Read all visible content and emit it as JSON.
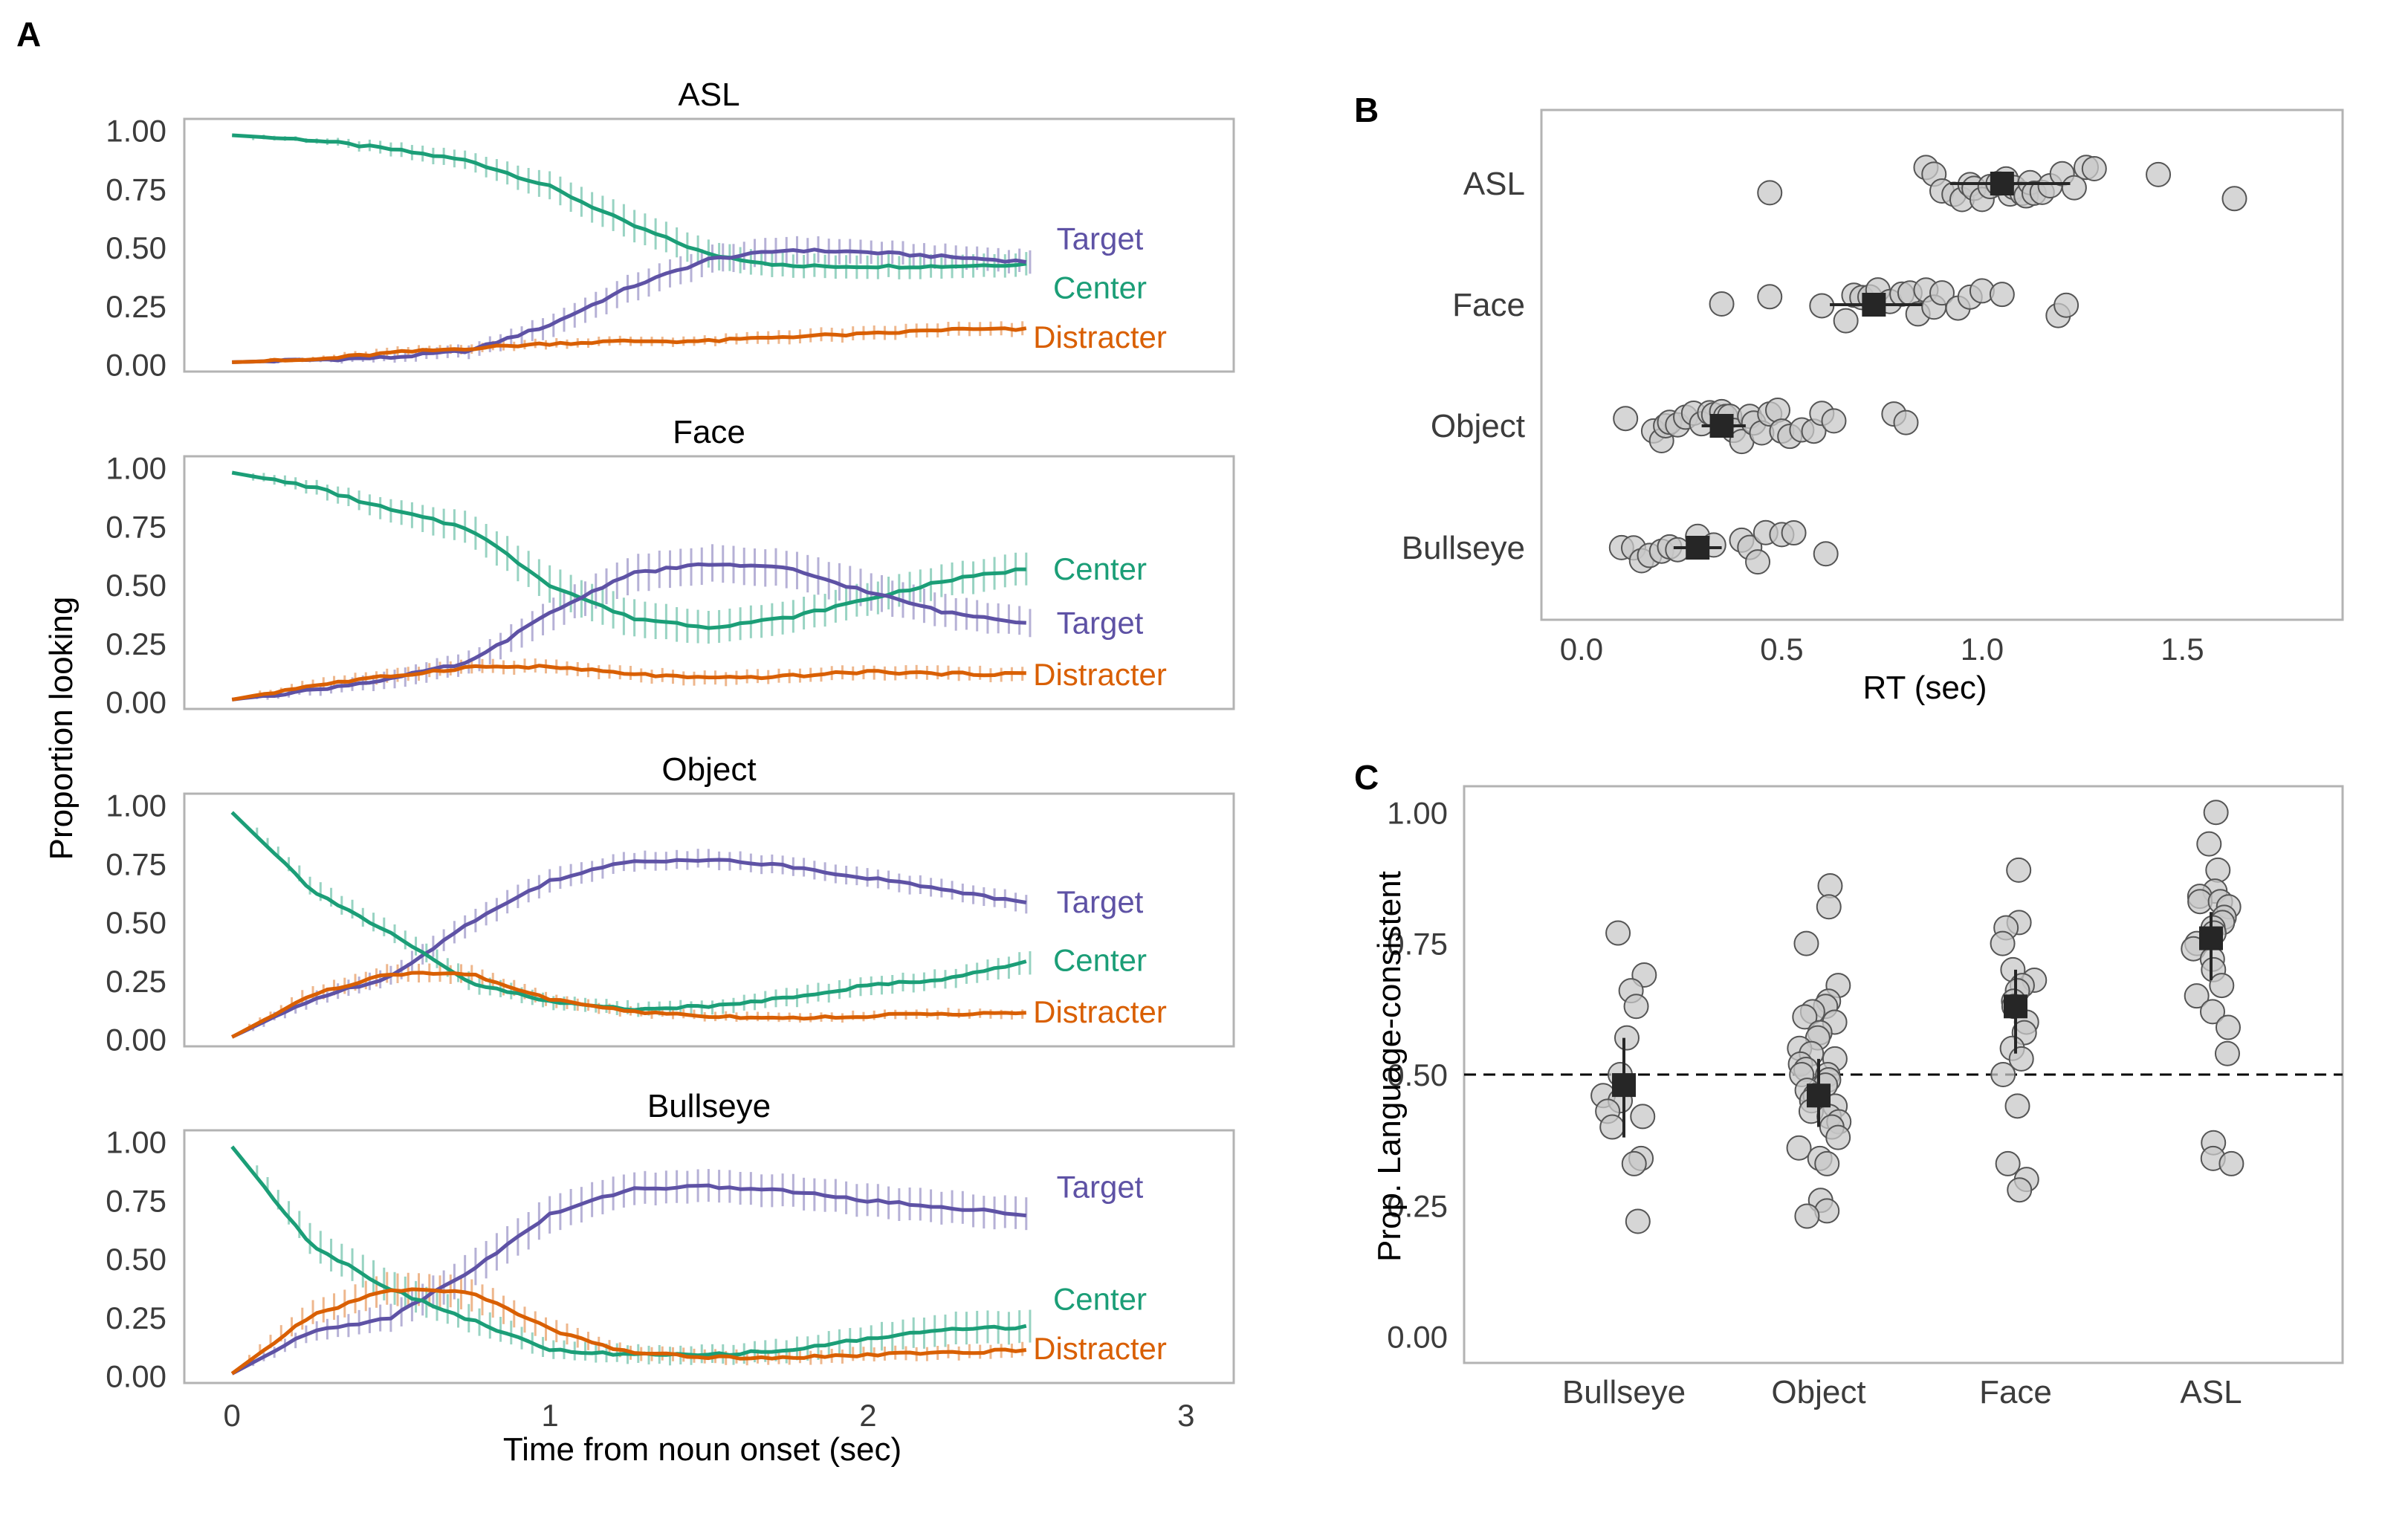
{
  "colors": {
    "center": "#1b9e77",
    "target": "#5e52a5",
    "distracter": "#d95f02",
    "frame": "#b3b3b3",
    "tick_text": "#3c3c3c",
    "point_fill": "#c8c8c8",
    "point_edge": "#555555",
    "mean": "#262626"
  },
  "chart_data": [
    {
      "panel_label": "A",
      "type": "line",
      "xlabel": "Time from noun onset (sec)",
      "ylabel": "Proportion looking",
      "xlim": [
        -0.15,
        3.15
      ],
      "ylim": [
        -0.03,
        1.05
      ],
      "x_ticks": [
        "0",
        "1",
        "2",
        "3"
      ],
      "y_ticks": [
        "0.00",
        "0.25",
        "0.50",
        "0.75",
        "1.00"
      ],
      "subplots": [
        {
          "title": "ASL",
          "series": [
            {
              "name": "Center",
              "key": "center",
              "x": [
                0,
                0.25,
                0.5,
                0.75,
                1.0,
                1.25,
                1.5,
                1.75,
                2.0,
                2.25,
                2.5
              ],
              "y": [
                0.98,
                0.96,
                0.92,
                0.87,
                0.76,
                0.6,
                0.47,
                0.42,
                0.42,
                0.42,
                0.43
              ],
              "err": [
                0.01,
                0.01,
                0.03,
                0.04,
                0.06,
                0.07,
                0.06,
                0.05,
                0.05,
                0.05,
                0.05
              ]
            },
            {
              "name": "Target",
              "key": "target",
              "x": [
                0,
                0.25,
                0.5,
                0.75,
                1.0,
                1.25,
                1.5,
                1.75,
                2.0,
                2.25,
                2.5
              ],
              "y": [
                0.01,
                0.02,
                0.03,
                0.06,
                0.17,
                0.33,
                0.45,
                0.49,
                0.48,
                0.46,
                0.44
              ],
              "err": [
                0.005,
                0.01,
                0.02,
                0.03,
                0.05,
                0.06,
                0.06,
                0.06,
                0.05,
                0.05,
                0.05
              ]
            },
            {
              "name": "Distracter",
              "key": "distracter",
              "x": [
                0,
                0.25,
                0.5,
                0.75,
                1.0,
                1.25,
                1.5,
                1.75,
                2.0,
                2.25,
                2.5
              ],
              "y": [
                0.01,
                0.02,
                0.05,
                0.07,
                0.09,
                0.1,
                0.1,
                0.12,
                0.13,
                0.15,
                0.15
              ],
              "err": [
                0.005,
                0.01,
                0.02,
                0.02,
                0.02,
                0.02,
                0.02,
                0.03,
                0.03,
                0.03,
                0.03
              ]
            }
          ]
        },
        {
          "title": "Face",
          "series": [
            {
              "name": "Center",
              "key": "center",
              "x": [
                0,
                0.25,
                0.5,
                0.75,
                1.0,
                1.25,
                1.5,
                1.75,
                2.0,
                2.25,
                2.5
              ],
              "y": [
                0.98,
                0.92,
                0.82,
                0.74,
                0.5,
                0.36,
                0.32,
                0.36,
                0.44,
                0.52,
                0.57
              ],
              "err": [
                0.01,
                0.03,
                0.05,
                0.07,
                0.08,
                0.08,
                0.07,
                0.07,
                0.07,
                0.07,
                0.07
              ]
            },
            {
              "name": "Target",
              "key": "target",
              "x": [
                0,
                0.25,
                0.5,
                0.75,
                1.0,
                1.25,
                1.5,
                1.75,
                2.0,
                2.25,
                2.5
              ],
              "y": [
                0.01,
                0.05,
                0.1,
                0.17,
                0.38,
                0.55,
                0.59,
                0.57,
                0.47,
                0.38,
                0.34
              ],
              "err": [
                0.005,
                0.02,
                0.04,
                0.05,
                0.07,
                0.08,
                0.08,
                0.08,
                0.08,
                0.07,
                0.06
              ]
            },
            {
              "name": "Distracter",
              "key": "distracter",
              "x": [
                0,
                0.25,
                0.5,
                0.75,
                1.0,
                1.25,
                1.5,
                1.75,
                2.0,
                2.25,
                2.5
              ],
              "y": [
                0.01,
                0.07,
                0.11,
                0.15,
                0.15,
                0.12,
                0.1,
                0.11,
                0.13,
                0.12,
                0.12
              ],
              "err": [
                0.005,
                0.02,
                0.03,
                0.03,
                0.03,
                0.03,
                0.03,
                0.03,
                0.03,
                0.03,
                0.03
              ]
            }
          ]
        },
        {
          "title": "Object",
          "series": [
            {
              "name": "Target",
              "key": "target",
              "x": [
                0,
                0.25,
                0.5,
                0.75,
                1.0,
                1.25,
                1.5,
                1.75,
                2.0,
                2.25,
                2.5
              ],
              "y": [
                0.01,
                0.17,
                0.27,
                0.5,
                0.68,
                0.76,
                0.77,
                0.74,
                0.69,
                0.64,
                0.58
              ],
              "err": [
                0.005,
                0.03,
                0.04,
                0.05,
                0.05,
                0.04,
                0.04,
                0.04,
                0.04,
                0.04,
                0.04
              ]
            },
            {
              "name": "Center",
              "key": "center",
              "x": [
                0,
                0.25,
                0.5,
                0.75,
                1.0,
                1.25,
                1.5,
                1.75,
                2.0,
                2.25,
                2.5
              ],
              "y": [
                0.97,
                0.64,
                0.45,
                0.24,
                0.16,
                0.13,
                0.14,
                0.18,
                0.23,
                0.26,
                0.33
              ],
              "err": [
                0.01,
                0.04,
                0.04,
                0.04,
                0.03,
                0.03,
                0.03,
                0.04,
                0.04,
                0.04,
                0.05
              ]
            },
            {
              "name": "Distracter",
              "key": "distracter",
              "x": [
                0,
                0.25,
                0.5,
                0.75,
                1.0,
                1.25,
                1.5,
                1.75,
                2.0,
                2.25,
                2.5
              ],
              "y": [
                0.01,
                0.19,
                0.28,
                0.28,
                0.17,
                0.12,
                0.1,
                0.09,
                0.1,
                0.11,
                0.11
              ],
              "err": [
                0.005,
                0.03,
                0.04,
                0.04,
                0.03,
                0.02,
                0.02,
                0.02,
                0.02,
                0.02,
                0.02
              ]
            }
          ]
        },
        {
          "title": "Bullseye",
          "series": [
            {
              "name": "Target",
              "key": "target",
              "x": [
                0,
                0.25,
                0.5,
                0.75,
                1.0,
                1.25,
                1.5,
                1.75,
                2.0,
                2.25,
                2.5
              ],
              "y": [
                0.01,
                0.19,
                0.25,
                0.45,
                0.69,
                0.8,
                0.81,
                0.79,
                0.75,
                0.72,
                0.69
              ],
              "err": [
                0.005,
                0.04,
                0.06,
                0.08,
                0.08,
                0.07,
                0.07,
                0.07,
                0.07,
                0.07,
                0.07
              ]
            },
            {
              "name": "Center",
              "key": "center",
              "x": [
                0,
                0.25,
                0.5,
                0.75,
                1.0,
                1.25,
                1.5,
                1.75,
                2.0,
                2.25,
                2.5
              ],
              "y": [
                0.98,
                0.56,
                0.37,
                0.24,
                0.11,
                0.09,
                0.09,
                0.11,
                0.16,
                0.2,
                0.21
              ],
              "err": [
                0.01,
                0.07,
                0.07,
                0.06,
                0.04,
                0.04,
                0.04,
                0.05,
                0.06,
                0.07,
                0.07
              ]
            },
            {
              "name": "Distracter",
              "key": "distracter",
              "x": [
                0,
                0.25,
                0.5,
                0.75,
                1.0,
                1.25,
                1.5,
                1.75,
                2.0,
                2.25,
                2.5
              ],
              "y": [
                0.01,
                0.26,
                0.37,
                0.36,
                0.2,
                0.1,
                0.08,
                0.08,
                0.09,
                0.1,
                0.11
              ],
              "err": [
                0.005,
                0.05,
                0.07,
                0.07,
                0.05,
                0.03,
                0.03,
                0.03,
                0.03,
                0.03,
                0.03
              ]
            }
          ]
        }
      ]
    },
    {
      "panel_label": "B",
      "type": "scatter",
      "xlabel": "RT (sec)",
      "ylabel": "",
      "xlim": [
        -0.1,
        1.9
      ],
      "x_ticks": [
        "0.0",
        "0.5",
        "1.0",
        "1.5"
      ],
      "categories": [
        "ASL",
        "Face",
        "Object",
        "Bullseye"
      ],
      "groups": [
        {
          "category": "ASL",
          "mean": 1.05,
          "ci": [
            0.92,
            1.22
          ],
          "values": [
            0.47,
            0.86,
            0.88,
            0.9,
            0.93,
            0.95,
            0.97,
            0.98,
            1.0,
            1.02,
            1.04,
            1.06,
            1.07,
            1.08,
            1.1,
            1.11,
            1.12,
            1.13,
            1.15,
            1.17,
            1.2,
            1.23,
            1.26,
            1.28,
            1.44,
            1.63
          ]
        },
        {
          "category": "Face",
          "mean": 0.73,
          "ci": [
            0.62,
            0.85
          ],
          "values": [
            0.35,
            0.47,
            0.6,
            0.66,
            0.68,
            0.7,
            0.72,
            0.74,
            0.77,
            0.8,
            0.82,
            0.84,
            0.86,
            0.88,
            0.9,
            0.94,
            0.97,
            1.0,
            1.05,
            1.19,
            1.21
          ]
        },
        {
          "category": "Object",
          "mean": 0.35,
          "ci": [
            0.3,
            0.41
          ],
          "values": [
            0.11,
            0.18,
            0.2,
            0.21,
            0.22,
            0.24,
            0.26,
            0.28,
            0.3,
            0.32,
            0.33,
            0.35,
            0.36,
            0.37,
            0.38,
            0.4,
            0.42,
            0.43,
            0.45,
            0.47,
            0.49,
            0.5,
            0.52,
            0.55,
            0.58,
            0.6,
            0.63,
            0.78,
            0.81
          ]
        },
        {
          "category": "Bullseye",
          "mean": 0.29,
          "ci": [
            0.23,
            0.35
          ],
          "values": [
            0.1,
            0.13,
            0.15,
            0.17,
            0.2,
            0.22,
            0.24,
            0.29,
            0.33,
            0.4,
            0.42,
            0.44,
            0.46,
            0.5,
            0.53,
            0.61
          ]
        }
      ]
    },
    {
      "panel_label": "C",
      "type": "scatter",
      "xlabel": "",
      "ylabel": "Prop. Language-consistent",
      "ylim": [
        -0.05,
        1.05
      ],
      "y_ticks": [
        "0.00",
        "0.25",
        "0.50",
        "0.75",
        "1.00"
      ],
      "reference_line": 0.5,
      "categories": [
        "Bullseye",
        "Object",
        "Face",
        "ASL"
      ],
      "groups": [
        {
          "category": "Bullseye",
          "mean": 0.48,
          "ci": [
            0.38,
            0.57
          ],
          "values": [
            0.77,
            0.69,
            0.66,
            0.63,
            0.57,
            0.5,
            0.46,
            0.45,
            0.43,
            0.42,
            0.4,
            0.34,
            0.33,
            0.22
          ]
        },
        {
          "category": "Object",
          "mean": 0.46,
          "ci": [
            0.4,
            0.53
          ],
          "values": [
            0.86,
            0.82,
            0.75,
            0.67,
            0.64,
            0.63,
            0.62,
            0.61,
            0.6,
            0.58,
            0.57,
            0.55,
            0.54,
            0.53,
            0.52,
            0.51,
            0.5,
            0.5,
            0.49,
            0.48,
            0.47,
            0.46,
            0.45,
            0.44,
            0.43,
            0.42,
            0.41,
            0.4,
            0.38,
            0.36,
            0.34,
            0.33,
            0.26,
            0.24,
            0.23
          ]
        },
        {
          "category": "Face",
          "mean": 0.63,
          "ci": [
            0.54,
            0.7
          ],
          "values": [
            0.89,
            0.79,
            0.78,
            0.75,
            0.7,
            0.68,
            0.67,
            0.66,
            0.64,
            0.63,
            0.6,
            0.58,
            0.55,
            0.53,
            0.5,
            0.44,
            0.33,
            0.3,
            0.28
          ]
        },
        {
          "category": "ASL",
          "mean": 0.76,
          "ci": [
            0.68,
            0.81
          ],
          "values": [
            1.0,
            0.94,
            0.89,
            0.85,
            0.84,
            0.83,
            0.83,
            0.82,
            0.8,
            0.79,
            0.78,
            0.77,
            0.75,
            0.74,
            0.72,
            0.7,
            0.67,
            0.65,
            0.62,
            0.59,
            0.54,
            0.37,
            0.34,
            0.33
          ]
        }
      ]
    }
  ]
}
